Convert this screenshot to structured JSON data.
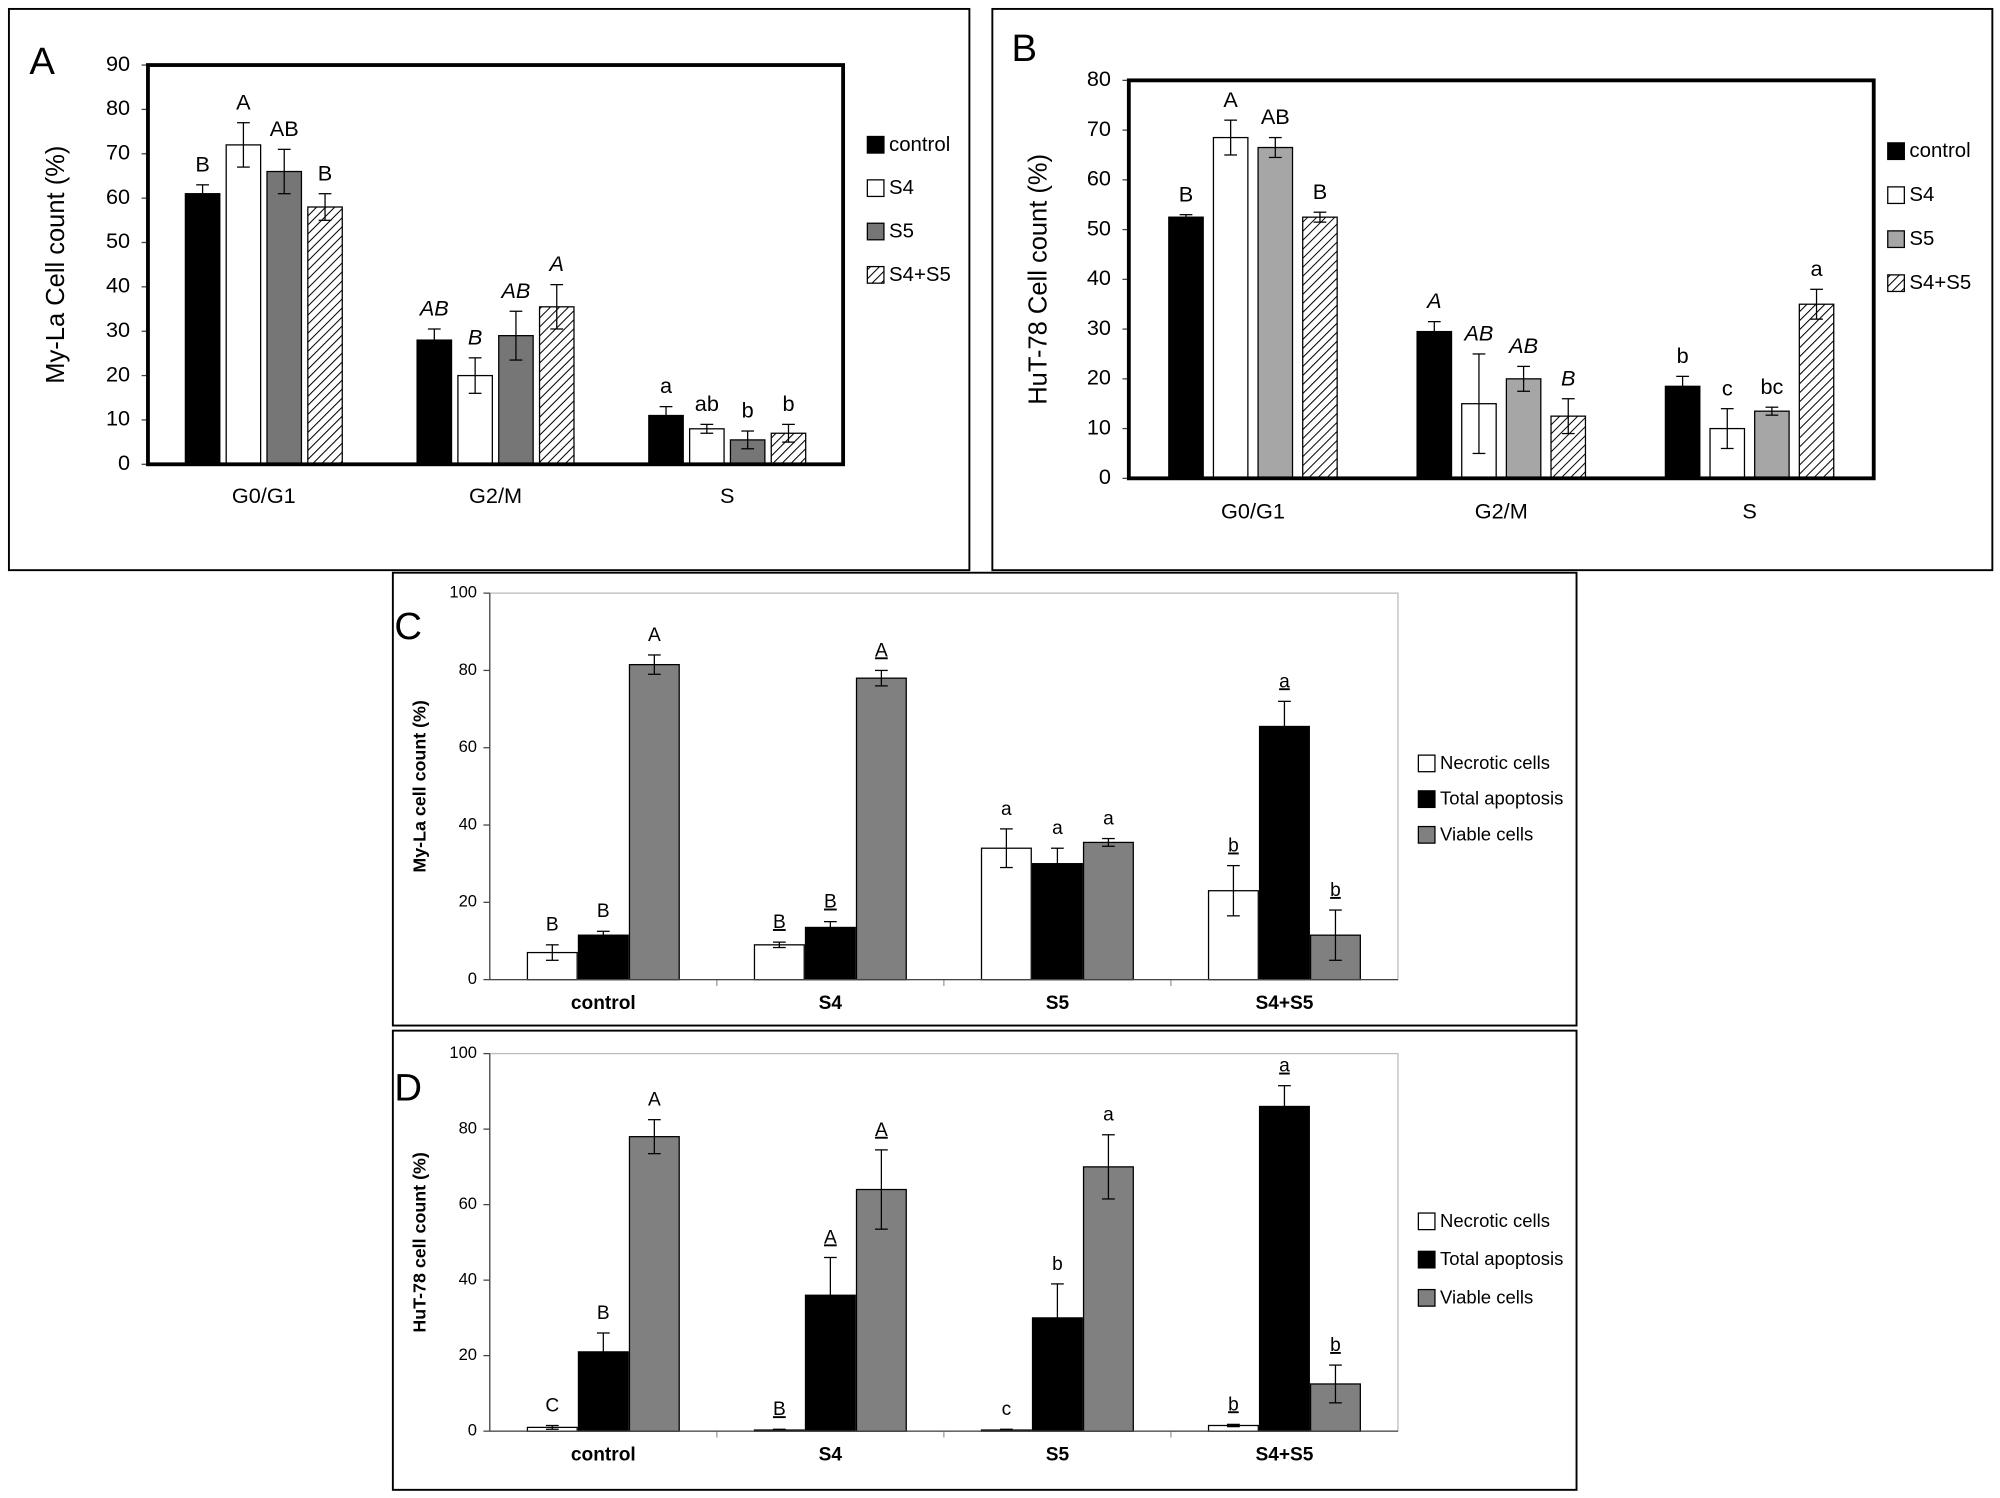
{
  "chart_data": [
    {
      "type": "bar",
      "panel_label": "A",
      "ylabel": "My-La Cell count (%)",
      "categories": [
        "G0/G1",
        "G2/M",
        "S"
      ],
      "ylim": [
        0,
        90
      ],
      "yticks": [
        0,
        10,
        20,
        30,
        40,
        50,
        60,
        70,
        80,
        90
      ],
      "legend": "right",
      "letter_italic": [
        false,
        true,
        false
      ],
      "series": [
        {
          "name": "control",
          "color": "#000000",
          "values": [
            61,
            28,
            11
          ],
          "errors": [
            2,
            2.5,
            2
          ],
          "letters": [
            "B",
            "AB",
            "a"
          ]
        },
        {
          "name": "S4",
          "color": "#ffffff",
          "values": [
            72,
            20,
            8
          ],
          "errors": [
            5,
            4,
            1
          ],
          "letters": [
            "A",
            "B",
            "ab"
          ]
        },
        {
          "name": "S5",
          "color": "#767676",
          "values": [
            66,
            29,
            5.5
          ],
          "errors": [
            5,
            5.5,
            2
          ],
          "letters": [
            "AB",
            "AB",
            "b"
          ]
        },
        {
          "name": "S4+S5",
          "color": "#ffffff",
          "hatch": true,
          "values": [
            58,
            35.5,
            7
          ],
          "errors": [
            3,
            5,
            2
          ],
          "letters": [
            "B",
            "A",
            "b"
          ]
        }
      ]
    },
    {
      "type": "bar",
      "panel_label": "B",
      "ylabel": "HuT-78 Cell count (%)",
      "categories": [
        "G0/G1",
        "G2/M",
        "S"
      ],
      "ylim": [
        0,
        80
      ],
      "yticks": [
        0,
        10,
        20,
        30,
        40,
        50,
        60,
        70,
        80
      ],
      "legend": "right",
      "letter_italic": [
        false,
        true,
        false
      ],
      "series": [
        {
          "name": "control",
          "color": "#000000",
          "values": [
            52.5,
            29.5,
            18.5
          ],
          "errors": [
            0.5,
            2,
            2
          ],
          "letters": [
            "B",
            "A",
            "b"
          ]
        },
        {
          "name": "S4",
          "color": "#ffffff",
          "values": [
            68.5,
            15,
            10
          ],
          "errors": [
            3.5,
            10,
            4
          ],
          "letters": [
            "A",
            "AB",
            "c"
          ]
        },
        {
          "name": "S5",
          "color": "#a6a6a6",
          "values": [
            66.5,
            20,
            13.5
          ],
          "errors": [
            2,
            2.5,
            0.8
          ],
          "letters": [
            "AB",
            "AB",
            "bc"
          ]
        },
        {
          "name": "S4+S5",
          "color": "#ffffff",
          "hatch": true,
          "values": [
            52.5,
            12.5,
            35
          ],
          "errors": [
            1,
            3.5,
            3
          ],
          "letters": [
            "B",
            "B",
            "a"
          ]
        }
      ]
    },
    {
      "type": "bar",
      "panel_label": "C",
      "ylabel": "My-La cell count (%)",
      "categories": [
        "control",
        "S4",
        "S5",
        "S4+S5"
      ],
      "ylim": [
        0,
        100
      ],
      "yticks": [
        0,
        20,
        40,
        60,
        80,
        100
      ],
      "legend": "right",
      "letter_underline": [
        false,
        true,
        false,
        true
      ],
      "series": [
        {
          "name": "Necrotic cells",
          "color": "#ffffff",
          "values": [
            7,
            9,
            34,
            23
          ],
          "errors": [
            2,
            0.7,
            5,
            6.5
          ],
          "letters": [
            "B",
            "B",
            "a",
            "b"
          ]
        },
        {
          "name": "Total apoptosis",
          "color": "#000000",
          "values": [
            11.5,
            13.5,
            30,
            65.5
          ],
          "errors": [
            1,
            1.5,
            4,
            6.5
          ],
          "letters": [
            "B",
            "B",
            "a",
            "a"
          ]
        },
        {
          "name": "Viable cells",
          "color": "#808080",
          "values": [
            81.5,
            78,
            35.5,
            11.5
          ],
          "errors": [
            2.5,
            2,
            1,
            6.5
          ],
          "letters": [
            "A",
            "A",
            "a",
            "b"
          ]
        }
      ]
    },
    {
      "type": "bar",
      "panel_label": "D",
      "ylabel": "HuT-78 cell count (%)",
      "categories": [
        "control",
        "S4",
        "S5",
        "S4+S5"
      ],
      "ylim": [
        0,
        100
      ],
      "yticks": [
        0,
        20,
        40,
        60,
        80,
        100
      ],
      "legend": "right",
      "letter_underline": [
        false,
        true,
        false,
        true
      ],
      "series": [
        {
          "name": "Necrotic cells",
          "color": "#ffffff",
          "values": [
            1,
            0.3,
            0.3,
            1.5
          ],
          "errors": [
            0.5,
            0.2,
            0.2,
            0.3
          ],
          "letters": [
            "C",
            "B",
            "c",
            "b"
          ]
        },
        {
          "name": "Total apoptosis",
          "color": "#000000",
          "values": [
            21,
            36,
            30,
            86
          ],
          "errors": [
            5,
            10,
            9,
            5.5
          ],
          "letters": [
            "B",
            "A",
            "b",
            "a"
          ]
        },
        {
          "name": "Viable cells",
          "color": "#808080",
          "values": [
            78,
            64,
            70,
            12.5
          ],
          "errors": [
            4.5,
            10.5,
            8.5,
            5
          ],
          "letters": [
            "A",
            "A",
            "a",
            "b"
          ]
        }
      ]
    }
  ]
}
